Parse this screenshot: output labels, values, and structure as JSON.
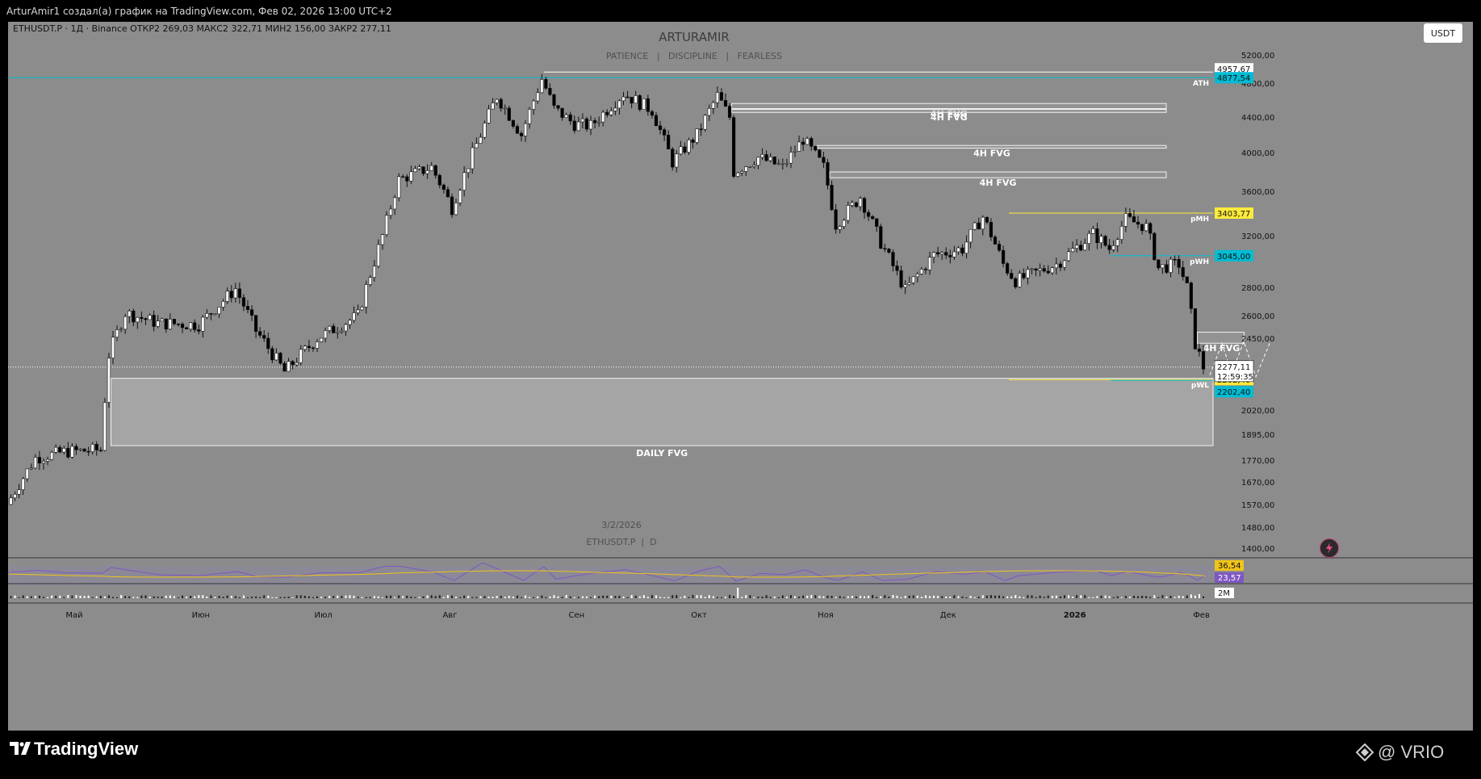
{
  "header": {
    "title": "ArturAmir1 создал(а) график на TradingView.com, Фев 02, 2026 13:00 UTC+2"
  },
  "symbol_bar": {
    "text": "ETHUSDT.P · 1Д · Binance  ОТКР2 269,03  МАКС2 322,71  МИН2 156,00  ЗАКР2 277,11"
  },
  "watermark": {
    "name": "ARTURAMIR",
    "motto": "PATIENCE   |   DISCIPLINE   |   FEARLESS",
    "date": "3/2/2026",
    "symbol": "ETHUSDT.P  |  D"
  },
  "currency_button": "USDT",
  "footer": {
    "brand": "TradingView",
    "vrio": "@ VRIO"
  },
  "colors": {
    "background": "#8c8c8c",
    "bull": "#ffffff",
    "bear": "#000000",
    "ath_line": "#00bcd4",
    "pmh_line": "#ffeb3b",
    "pwh_line": "#00bcd4",
    "rsi_line": "#7e57c2",
    "rsi_ma": "#f0c419"
  },
  "chart_data": {
    "type": "candlestick",
    "symbol": "ETHUSDT.P",
    "interval": "1Д",
    "exchange": "Binance",
    "ohlc_last": {
      "open": 2269.03,
      "high": 2322.71,
      "low": 2156.0,
      "close": 2277.11
    },
    "ylim": [
      1340,
      5450
    ],
    "y_ticks": [
      5200,
      4800,
      4400,
      4000,
      3600,
      3200,
      2800,
      2600,
      2450,
      2020,
      1895,
      1770,
      1670,
      1570,
      1480,
      1400
    ],
    "y_tick_labels": [
      "5200,00",
      "4800,00",
      "4400,00",
      "4000,00",
      "3600,00",
      "3200,00",
      "2800,00",
      "2600,00",
      "2450,00",
      "2020,00",
      "1895,00",
      "1770,00",
      "1670,00",
      "1570,00",
      "1480,00",
      "1400,00"
    ],
    "x_ticks": [
      {
        "label": "Май",
        "date": "2025-05-01"
      },
      {
        "label": "Июн",
        "date": "2025-06-01"
      },
      {
        "label": "Июл",
        "date": "2025-07-01"
      },
      {
        "label": "Авг",
        "date": "2025-08-01"
      },
      {
        "label": "Сен",
        "date": "2025-09-01"
      },
      {
        "label": "Окт",
        "date": "2025-10-01"
      },
      {
        "label": "Ноя",
        "date": "2025-11-01"
      },
      {
        "label": "Дек",
        "date": "2025-12-01"
      },
      {
        "label": "2026",
        "date": "2026-01-01"
      },
      {
        "label": "Фев",
        "date": "2026-02-01"
      }
    ],
    "price_path": [
      [
        "2025-04-15",
        1570
      ],
      [
        "2025-04-22",
        1780
      ],
      [
        "2025-04-29",
        1810
      ],
      [
        "2025-05-08",
        1820
      ],
      [
        "2025-05-10",
        2350
      ],
      [
        "2025-05-14",
        2620
      ],
      [
        "2025-05-22",
        2550
      ],
      [
        "2025-06-01",
        2540
      ],
      [
        "2025-06-10",
        2790
      ],
      [
        "2025-06-15",
        2500
      ],
      [
        "2025-06-22",
        2250
      ],
      [
        "2025-06-30",
        2450
      ],
      [
        "2025-07-10",
        2600
      ],
      [
        "2025-07-16",
        3200
      ],
      [
        "2025-07-20",
        3720
      ],
      [
        "2025-07-28",
        3850
      ],
      [
        "2025-08-02",
        3450
      ],
      [
        "2025-08-09",
        4200
      ],
      [
        "2025-08-13",
        4650
      ],
      [
        "2025-08-19",
        4200
      ],
      [
        "2025-08-24",
        4860
      ],
      [
        "2025-08-27",
        4500
      ],
      [
        "2025-09-01",
        4320
      ],
      [
        "2025-09-05",
        4300
      ],
      [
        "2025-09-13",
        4680
      ],
      [
        "2025-09-20",
        4480
      ],
      [
        "2025-09-25",
        3900
      ],
      [
        "2025-10-01",
        4200
      ],
      [
        "2025-10-06",
        4650
      ],
      [
        "2025-10-09",
        4400
      ],
      [
        "2025-10-10",
        3800
      ],
      [
        "2025-10-16",
        3950
      ],
      [
        "2025-10-22",
        3850
      ],
      [
        "2025-10-27",
        4150
      ],
      [
        "2025-11-01",
        3850
      ],
      [
        "2025-11-04",
        3300
      ],
      [
        "2025-11-10",
        3550
      ],
      [
        "2025-11-15",
        3150
      ],
      [
        "2025-11-21",
        2780
      ],
      [
        "2025-11-28",
        3050
      ],
      [
        "2025-12-05",
        3100
      ],
      [
        "2025-12-10",
        3370
      ],
      [
        "2025-12-15",
        2980
      ],
      [
        "2025-12-18",
        2850
      ],
      [
        "2025-12-28",
        2980
      ],
      [
        "2026-01-06",
        3220
      ],
      [
        "2026-01-10",
        3100
      ],
      [
        "2026-01-14",
        3350
      ],
      [
        "2026-01-19",
        3280
      ],
      [
        "2026-01-22",
        2950
      ],
      [
        "2026-01-27",
        2980
      ],
      [
        "2026-01-29",
        2800
      ],
      [
        "2026-01-31",
        2420
      ],
      [
        "2026-02-02",
        2277
      ]
    ],
    "levels": [
      {
        "label": "ATH",
        "value": 4877.54,
        "tag": "4877,54",
        "color": "#00bcd4"
      },
      {
        "label": "pMH",
        "value": 3403.77,
        "tag": "3403,77",
        "color": "#ffeb3b"
      },
      {
        "label": "pWH",
        "value": 3045.0,
        "tag": "3045,00",
        "color": "#00bcd4"
      },
      {
        "label": "pWL",
        "value": 2202.4,
        "tag": "2202,40",
        "color": "#ffeb3b"
      },
      {
        "label": "",
        "value": 2202.4,
        "tag": "2202,40",
        "color": "#00bcd4"
      }
    ],
    "price_tags": {
      "high": "4957,67",
      "last": "2277,11",
      "countdown": "12:59:35"
    },
    "zones": [
      {
        "label": "DAILY FVG",
        "top": 2210,
        "bottom": 1840,
        "from": "2025-05-10"
      },
      {
        "label": "4H FVG",
        "top": 4560,
        "bottom": 4500,
        "from": "2025-10-09"
      },
      {
        "label": "4H FVG",
        "top": 4490,
        "bottom": 4455,
        "from": "2025-10-09"
      },
      {
        "label": "4H FVG",
        "top": 4080,
        "bottom": 4050,
        "from": "2025-10-30"
      },
      {
        "label": "4H FVG",
        "top": 3800,
        "bottom": 3740,
        "from": "2025-11-02"
      },
      {
        "label": "4H FVG",
        "top": 2490,
        "bottom": 2420,
        "from": "2026-01-31"
      }
    ],
    "rsi": {
      "value": "36,54",
      "ma": "23,57"
    },
    "volume_label": "2M",
    "grid": false
  }
}
